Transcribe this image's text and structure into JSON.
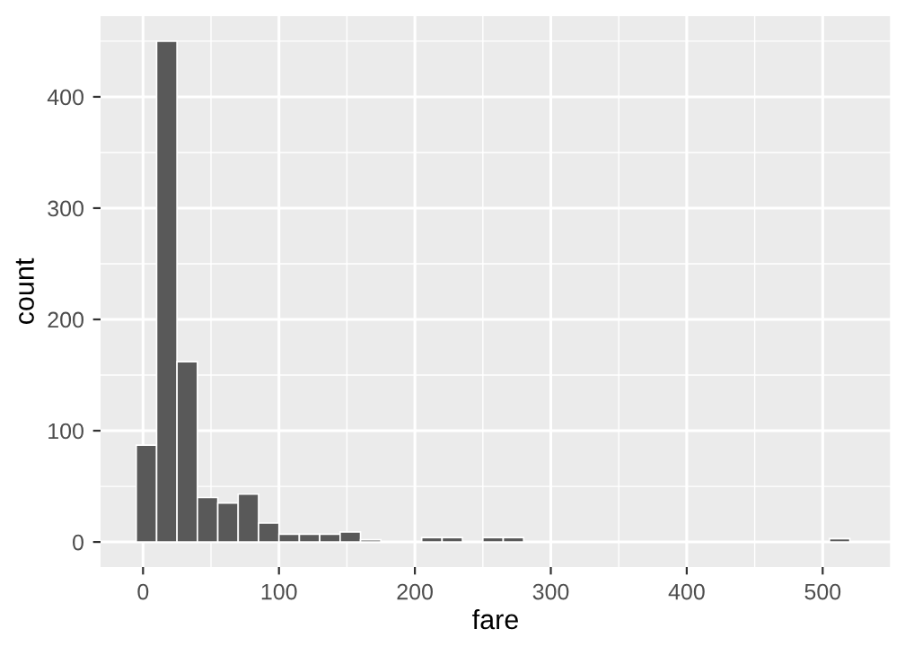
{
  "chart_data": {
    "type": "histogram",
    "xlabel": "fare",
    "ylabel": "count",
    "color": "#595959",
    "bins": [
      -5,
      10,
      25,
      40,
      55,
      70,
      85,
      100,
      115,
      130,
      145,
      160,
      175,
      190,
      205,
      220,
      235,
      250,
      265,
      280,
      295,
      310,
      325,
      340,
      355,
      370,
      385,
      400,
      415,
      430,
      445,
      460,
      475,
      490,
      505,
      520
    ],
    "values": [
      87,
      450,
      162,
      40,
      35,
      43,
      17,
      7,
      7,
      7,
      9,
      2,
      0,
      0,
      4,
      4,
      0,
      4,
      4,
      0,
      0,
      0,
      0,
      0,
      0,
      0,
      0,
      0,
      0,
      0,
      0,
      0,
      0,
      0,
      3
    ],
    "xlim": [
      -31.25,
      546.25
    ],
    "ylim": [
      -22.5,
      472.5
    ],
    "xticks": [
      0,
      100,
      200,
      300,
      400,
      500
    ],
    "yticks": [
      0,
      100,
      200,
      300,
      400
    ],
    "grid": true
  }
}
